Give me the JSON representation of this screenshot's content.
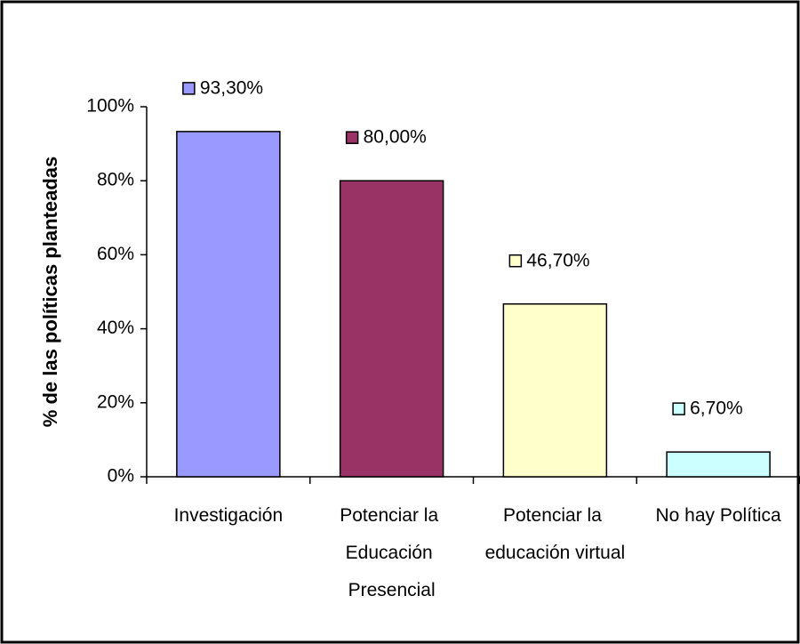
{
  "chart_data": {
    "type": "bar",
    "y_label": "% de las políticas planteadas",
    "categories": [
      "Investigación",
      "Potenciar la Educación Presencial",
      "Potenciar la educación virtual",
      "No hay Política"
    ],
    "series": [
      {
        "name": null,
        "colors": [
          "#9999ff",
          "#993366",
          "#ffffcc",
          "#ccffff"
        ],
        "values": [
          93.3,
          80.0,
          46.7,
          6.7
        ],
        "value_labels": [
          "93,30%",
          "80,00%",
          "46,70%",
          "6,70%"
        ]
      }
    ],
    "ylim": [
      0,
      100
    ],
    "yticks": [
      {
        "value": 0,
        "label": "0%"
      },
      {
        "value": 20,
        "label": "20%"
      },
      {
        "value": 40,
        "label": "40%"
      },
      {
        "value": 60,
        "label": "60%"
      },
      {
        "value": 80,
        "label": "80%"
      },
      {
        "value": 100,
        "label": "100%"
      }
    ],
    "grid": false
  }
}
